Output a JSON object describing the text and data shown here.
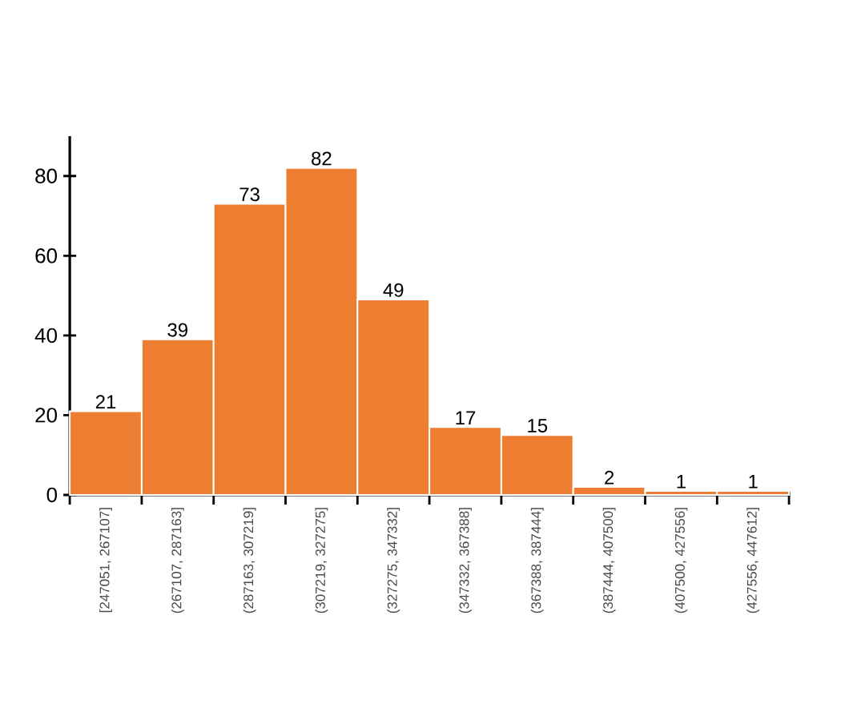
{
  "chart_data": {
    "type": "bar",
    "categories": [
      "[247051, 267107]",
      "(267107, 287163]",
      "(287163, 307219]",
      "(307219, 327275]",
      "(327275, 347332]",
      "(347332, 367388]",
      "(367388, 387444]",
      "(387444, 407500]",
      "(407500, 427556]",
      "(427556, 447612]"
    ],
    "values": [
      21,
      39,
      73,
      82,
      49,
      17,
      15,
      2,
      1,
      1
    ],
    "color": "#ed7d31",
    "ylim": [
      0,
      90
    ],
    "yticks": [
      0,
      20,
      40,
      60,
      80
    ],
    "data_labels": true
  }
}
